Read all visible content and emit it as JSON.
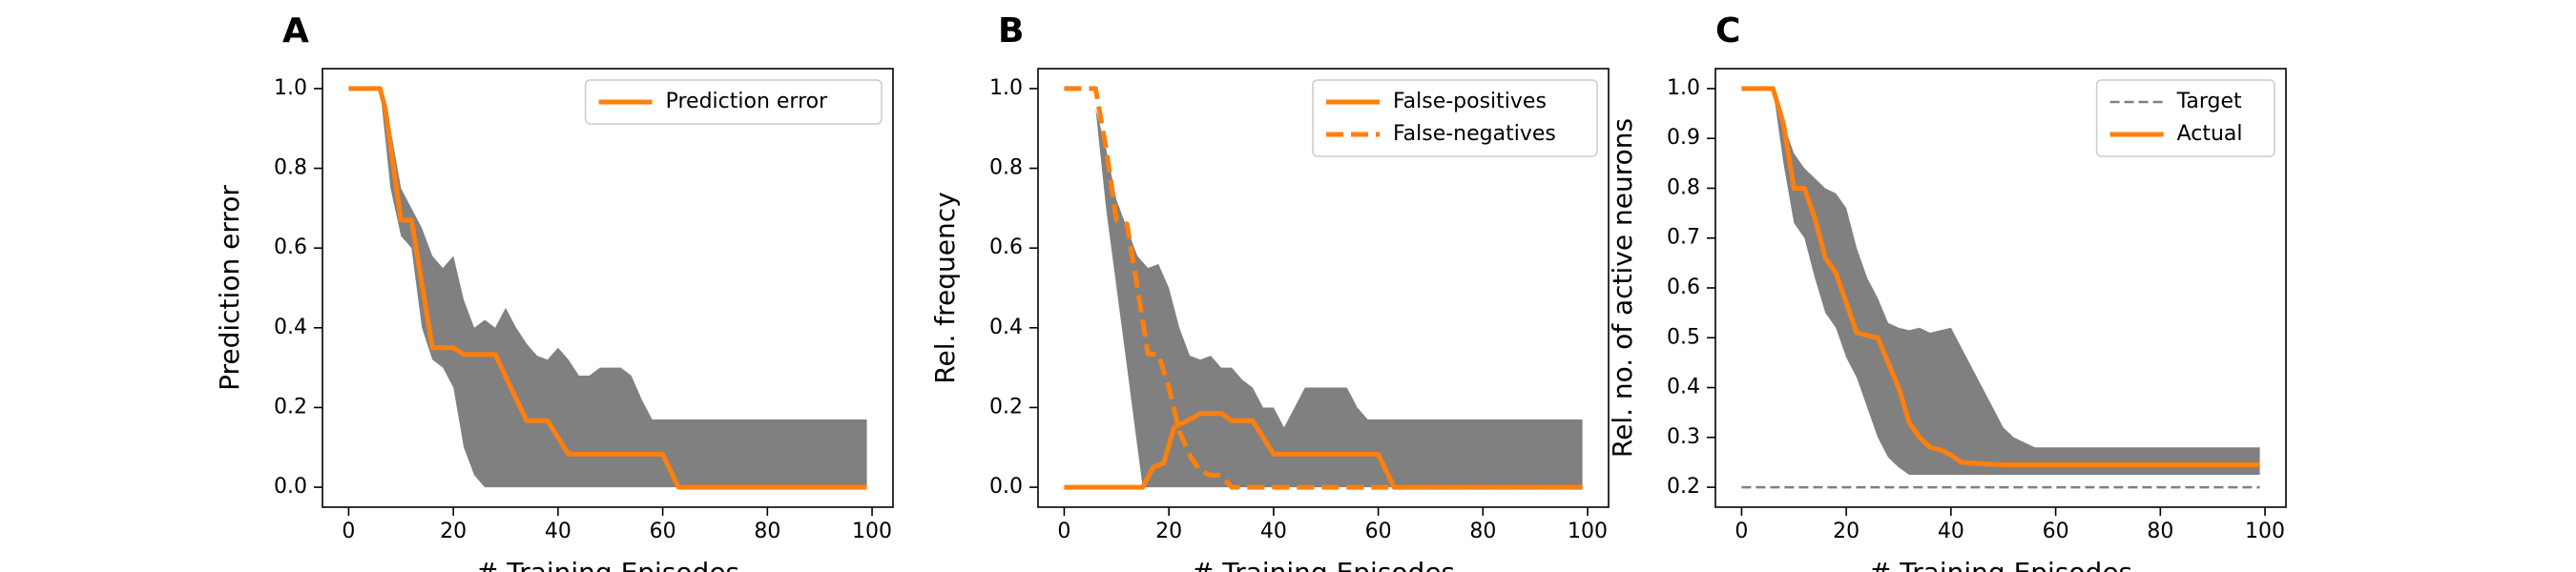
{
  "chart_data": [
    {
      "panel_label": "A",
      "type": "line",
      "xlabel": "# Training Episodes",
      "ylabel": "Prediction error",
      "xlim": [
        -5,
        104
      ],
      "ylim": [
        -0.05,
        1.05
      ],
      "xticks": [
        0,
        20,
        40,
        60,
        80,
        100
      ],
      "yticks": [
        0.0,
        0.2,
        0.4,
        0.6,
        0.8,
        1.0
      ],
      "ytick_labels": [
        "0.0",
        "0.2",
        "0.4",
        "0.6",
        "0.8",
        "1.0"
      ],
      "legend_position": "upper-right",
      "legend_entries": [
        {
          "label": "Prediction error",
          "style": "solid",
          "color": "#ff7f0e"
        }
      ],
      "band": {
        "color": "#808080",
        "upper": [
          [
            0,
            1.0
          ],
          [
            6,
            1.0
          ],
          [
            8,
            0.9
          ],
          [
            10,
            0.75
          ],
          [
            12,
            0.7
          ],
          [
            14,
            0.65
          ],
          [
            16,
            0.58
          ],
          [
            18,
            0.55
          ],
          [
            20,
            0.58
          ],
          [
            22,
            0.47
          ],
          [
            24,
            0.4
          ],
          [
            26,
            0.42
          ],
          [
            28,
            0.4
          ],
          [
            30,
            0.45
          ],
          [
            32,
            0.4
          ],
          [
            34,
            0.36
          ],
          [
            36,
            0.33
          ],
          [
            38,
            0.32
          ],
          [
            40,
            0.35
          ],
          [
            42,
            0.32
          ],
          [
            44,
            0.28
          ],
          [
            46,
            0.28
          ],
          [
            48,
            0.3
          ],
          [
            50,
            0.3
          ],
          [
            52,
            0.3
          ],
          [
            54,
            0.28
          ],
          [
            56,
            0.22
          ],
          [
            58,
            0.17
          ],
          [
            60,
            0.17
          ],
          [
            99,
            0.17
          ]
        ],
        "lower": [
          [
            0,
            1.0
          ],
          [
            6,
            1.0
          ],
          [
            8,
            0.75
          ],
          [
            10,
            0.63
          ],
          [
            12,
            0.6
          ],
          [
            14,
            0.4
          ],
          [
            16,
            0.32
          ],
          [
            18,
            0.3
          ],
          [
            20,
            0.25
          ],
          [
            22,
            0.1
          ],
          [
            24,
            0.03
          ],
          [
            26,
            0.0
          ],
          [
            99,
            0.0
          ]
        ]
      },
      "series": [
        {
          "name": "Prediction error",
          "style": "solid",
          "color": "#ff7f0e",
          "points": [
            [
              0,
              1.0
            ],
            [
              6,
              1.0
            ],
            [
              7,
              0.95
            ],
            [
              10,
              0.67
            ],
            [
              12,
              0.67
            ],
            [
              16,
              0.35
            ],
            [
              18,
              0.35
            ],
            [
              20,
              0.35
            ],
            [
              22,
              0.333
            ],
            [
              28,
              0.333
            ],
            [
              34,
              0.167
            ],
            [
              38,
              0.167
            ],
            [
              42,
              0.083
            ],
            [
              60,
              0.083
            ],
            [
              63,
              0.0
            ],
            [
              99,
              0.0
            ]
          ]
        }
      ]
    },
    {
      "panel_label": "B",
      "type": "line",
      "xlabel": "# Training Episodes",
      "ylabel": "Rel. frequency",
      "xlim": [
        -5,
        104
      ],
      "ylim": [
        -0.05,
        1.05
      ],
      "xticks": [
        0,
        20,
        40,
        60,
        80,
        100
      ],
      "yticks": [
        0.0,
        0.2,
        0.4,
        0.6,
        0.8,
        1.0
      ],
      "ytick_labels": [
        "0.0",
        "0.2",
        "0.4",
        "0.6",
        "0.8",
        "1.0"
      ],
      "legend_position": "upper-right",
      "legend_entries": [
        {
          "label": "False-positives",
          "style": "solid",
          "color": "#ff7f0e"
        },
        {
          "label": "False-negatives",
          "style": "dashed",
          "color": "#ff7f0e"
        }
      ],
      "band": {
        "color": "#808080",
        "upper": [
          [
            4,
            1.0
          ],
          [
            6,
            0.95
          ],
          [
            8,
            0.85
          ],
          [
            10,
            0.72
          ],
          [
            12,
            0.65
          ],
          [
            14,
            0.58
          ],
          [
            16,
            0.55
          ],
          [
            18,
            0.56
          ],
          [
            20,
            0.5
          ],
          [
            22,
            0.4
          ],
          [
            24,
            0.33
          ],
          [
            26,
            0.32
          ],
          [
            28,
            0.33
          ],
          [
            30,
            0.3
          ],
          [
            32,
            0.3
          ],
          [
            34,
            0.27
          ],
          [
            36,
            0.25
          ],
          [
            38,
            0.2
          ],
          [
            40,
            0.2
          ],
          [
            42,
            0.15
          ],
          [
            44,
            0.2
          ],
          [
            46,
            0.25
          ],
          [
            48,
            0.25
          ],
          [
            50,
            0.25
          ],
          [
            52,
            0.25
          ],
          [
            54,
            0.25
          ],
          [
            56,
            0.2
          ],
          [
            58,
            0.17
          ],
          [
            60,
            0.17
          ],
          [
            99,
            0.17
          ]
        ],
        "lower": [
          [
            4,
            1.0
          ],
          [
            6,
            0.95
          ],
          [
            8,
            0.7
          ],
          [
            10,
            0.5
          ],
          [
            12,
            0.3
          ],
          [
            14,
            0.1
          ],
          [
            15,
            0.0
          ],
          [
            99,
            0.0
          ]
        ]
      },
      "series": [
        {
          "name": "False-positives",
          "style": "solid",
          "color": "#ff7f0e",
          "points": [
            [
              0,
              0.0
            ],
            [
              15,
              0.0
            ],
            [
              17,
              0.05
            ],
            [
              19,
              0.06
            ],
            [
              21,
              0.15
            ],
            [
              24,
              0.17
            ],
            [
              26,
              0.185
            ],
            [
              30,
              0.185
            ],
            [
              32,
              0.167
            ],
            [
              36,
              0.167
            ],
            [
              40,
              0.083
            ],
            [
              60,
              0.083
            ],
            [
              63,
              0.0
            ],
            [
              99,
              0.0
            ]
          ]
        },
        {
          "name": "False-negatives",
          "style": "dashed",
          "color": "#ff7f0e",
          "points": [
            [
              0,
              1.0
            ],
            [
              6,
              1.0
            ],
            [
              8,
              0.85
            ],
            [
              10,
              0.67
            ],
            [
              12,
              0.66
            ],
            [
              14,
              0.5
            ],
            [
              16,
              0.335
            ],
            [
              18,
              0.333
            ],
            [
              20,
              0.25
            ],
            [
              22,
              0.14
            ],
            [
              24,
              0.08
            ],
            [
              26,
              0.04
            ],
            [
              28,
              0.03
            ],
            [
              30,
              0.03
            ],
            [
              32,
              0.0
            ],
            [
              99,
              0.0
            ]
          ]
        }
      ]
    },
    {
      "panel_label": "C",
      "type": "line",
      "xlabel": "# Training Episodes",
      "ylabel": "Rel. no. of active neurons",
      "xlim": [
        -5,
        104
      ],
      "ylim": [
        0.16,
        1.04
      ],
      "xticks": [
        0,
        20,
        40,
        60,
        80,
        100
      ],
      "yticks": [
        0.2,
        0.3,
        0.4,
        0.5,
        0.6,
        0.7,
        0.8,
        0.9,
        1.0
      ],
      "ytick_labels": [
        "0.2",
        "0.3",
        "0.4",
        "0.5",
        "0.6",
        "0.7",
        "0.8",
        "0.9",
        "1.0"
      ],
      "legend_position": "upper-right",
      "legend_entries": [
        {
          "label": "Target",
          "style": "dashed",
          "color": "#808080"
        },
        {
          "label": "Actual",
          "style": "solid",
          "color": "#ff7f0e"
        }
      ],
      "band": {
        "color": "#808080",
        "upper": [
          [
            0,
            1.0
          ],
          [
            6,
            1.0
          ],
          [
            8,
            0.93
          ],
          [
            10,
            0.87
          ],
          [
            12,
            0.84
          ],
          [
            14,
            0.82
          ],
          [
            16,
            0.8
          ],
          [
            18,
            0.79
          ],
          [
            20,
            0.76
          ],
          [
            22,
            0.68
          ],
          [
            24,
            0.62
          ],
          [
            26,
            0.58
          ],
          [
            28,
            0.53
          ],
          [
            30,
            0.52
          ],
          [
            32,
            0.515
          ],
          [
            34,
            0.52
          ],
          [
            36,
            0.51
          ],
          [
            38,
            0.515
          ],
          [
            40,
            0.52
          ],
          [
            42,
            0.48
          ],
          [
            44,
            0.44
          ],
          [
            46,
            0.4
          ],
          [
            48,
            0.36
          ],
          [
            50,
            0.32
          ],
          [
            52,
            0.3
          ],
          [
            54,
            0.29
          ],
          [
            56,
            0.28
          ],
          [
            99,
            0.28
          ]
        ],
        "lower": [
          [
            0,
            1.0
          ],
          [
            6,
            1.0
          ],
          [
            8,
            0.85
          ],
          [
            10,
            0.73
          ],
          [
            12,
            0.7
          ],
          [
            14,
            0.62
          ],
          [
            16,
            0.55
          ],
          [
            18,
            0.52
          ],
          [
            20,
            0.46
          ],
          [
            22,
            0.42
          ],
          [
            24,
            0.36
          ],
          [
            26,
            0.3
          ],
          [
            28,
            0.26
          ],
          [
            30,
            0.24
          ],
          [
            32,
            0.225
          ],
          [
            99,
            0.225
          ]
        ]
      },
      "series": [
        {
          "name": "Target",
          "style": "dashed",
          "color": "#808080",
          "points": [
            [
              0,
              0.2
            ],
            [
              99,
              0.2
            ]
          ]
        },
        {
          "name": "Actual",
          "style": "solid",
          "color": "#ff7f0e",
          "points": [
            [
              0,
              1.0
            ],
            [
              6,
              1.0
            ],
            [
              8,
              0.93
            ],
            [
              10,
              0.8
            ],
            [
              12,
              0.8
            ],
            [
              14,
              0.74
            ],
            [
              16,
              0.66
            ],
            [
              18,
              0.63
            ],
            [
              20,
              0.57
            ],
            [
              22,
              0.51
            ],
            [
              24,
              0.505
            ],
            [
              26,
              0.5
            ],
            [
              28,
              0.45
            ],
            [
              30,
              0.4
            ],
            [
              32,
              0.33
            ],
            [
              34,
              0.3
            ],
            [
              36,
              0.28
            ],
            [
              38,
              0.275
            ],
            [
              40,
              0.265
            ],
            [
              42,
              0.25
            ],
            [
              46,
              0.247
            ],
            [
              50,
              0.245
            ],
            [
              99,
              0.245
            ]
          ]
        }
      ]
    }
  ]
}
